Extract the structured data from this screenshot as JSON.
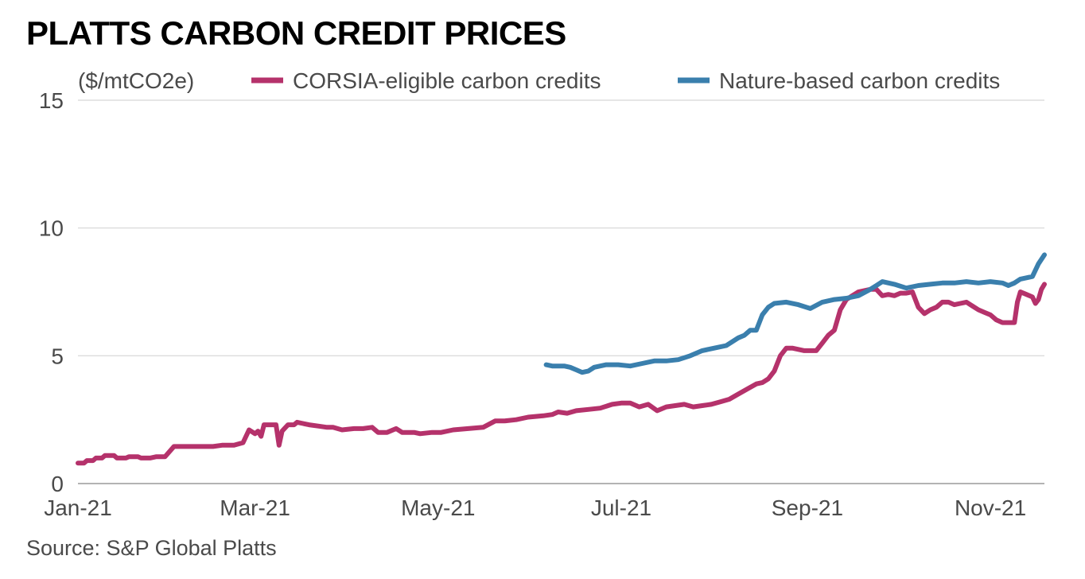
{
  "chart_data": {
    "type": "line",
    "title": "PLATTS CARBON CREDIT PRICES",
    "unit_label": "($/mtCO2e)",
    "source": "Source: S&P Global Platts",
    "ylim": [
      0,
      15
    ],
    "yticks": [
      0,
      5,
      10,
      15
    ],
    "xlim": [
      0,
      322
    ],
    "xticks": [
      {
        "label": "Jan-21",
        "day": 0
      },
      {
        "label": "Mar-21",
        "day": 59
      },
      {
        "label": "May-21",
        "day": 120
      },
      {
        "label": "Jul-21",
        "day": 181
      },
      {
        "label": "Sep-21",
        "day": 243
      },
      {
        "label": "Nov-21",
        "day": 304
      }
    ],
    "grid": true,
    "legend_position": "top",
    "series": [
      {
        "name": "CORSIA-eligible carbon credits",
        "color": "#b5326b",
        "points": [
          [
            0,
            0.8
          ],
          [
            2,
            0.8
          ],
          [
            3,
            0.9
          ],
          [
            5,
            0.9
          ],
          [
            6,
            1.0
          ],
          [
            8,
            1.0
          ],
          [
            9,
            1.1
          ],
          [
            12,
            1.1
          ],
          [
            13,
            1.0
          ],
          [
            16,
            1.0
          ],
          [
            17,
            1.05
          ],
          [
            20,
            1.05
          ],
          [
            21,
            1.0
          ],
          [
            24,
            1.0
          ],
          [
            26,
            1.05
          ],
          [
            29,
            1.05
          ],
          [
            32,
            1.45
          ],
          [
            35,
            1.45
          ],
          [
            40,
            1.45
          ],
          [
            45,
            1.45
          ],
          [
            48,
            1.5
          ],
          [
            52,
            1.5
          ],
          [
            55,
            1.6
          ],
          [
            57,
            2.1
          ],
          [
            59,
            1.95
          ],
          [
            60,
            2.05
          ],
          [
            61,
            1.85
          ],
          [
            62,
            2.3
          ],
          [
            66,
            2.3
          ],
          [
            67,
            1.5
          ],
          [
            68,
            2.05
          ],
          [
            70,
            2.3
          ],
          [
            72,
            2.3
          ],
          [
            73,
            2.4
          ],
          [
            75,
            2.35
          ],
          [
            77,
            2.3
          ],
          [
            80,
            2.25
          ],
          [
            83,
            2.2
          ],
          [
            85,
            2.2
          ],
          [
            88,
            2.1
          ],
          [
            92,
            2.15
          ],
          [
            95,
            2.15
          ],
          [
            98,
            2.2
          ],
          [
            100,
            2.0
          ],
          [
            103,
            2.0
          ],
          [
            106,
            2.15
          ],
          [
            108,
            2.0
          ],
          [
            112,
            2.0
          ],
          [
            114,
            1.95
          ],
          [
            118,
            2.0
          ],
          [
            121,
            2.0
          ],
          [
            125,
            2.1
          ],
          [
            130,
            2.15
          ],
          [
            135,
            2.2
          ],
          [
            139,
            2.45
          ],
          [
            142,
            2.45
          ],
          [
            146,
            2.5
          ],
          [
            150,
            2.6
          ],
          [
            155,
            2.65
          ],
          [
            158,
            2.7
          ],
          [
            160,
            2.8
          ],
          [
            163,
            2.75
          ],
          [
            166,
            2.85
          ],
          [
            170,
            2.9
          ],
          [
            174,
            2.95
          ],
          [
            178,
            3.1
          ],
          [
            181,
            3.15
          ],
          [
            184,
            3.15
          ],
          [
            187,
            3.0
          ],
          [
            190,
            3.1
          ],
          [
            193,
            2.85
          ],
          [
            196,
            3.0
          ],
          [
            199,
            3.05
          ],
          [
            202,
            3.1
          ],
          [
            205,
            3.0
          ],
          [
            208,
            3.05
          ],
          [
            211,
            3.1
          ],
          [
            214,
            3.2
          ],
          [
            217,
            3.3
          ],
          [
            220,
            3.5
          ],
          [
            223,
            3.7
          ],
          [
            226,
            3.9
          ],
          [
            228,
            3.95
          ],
          [
            230,
            4.1
          ],
          [
            232,
            4.4
          ],
          [
            234,
            5.0
          ],
          [
            236,
            5.3
          ],
          [
            238,
            5.3
          ],
          [
            240,
            5.25
          ],
          [
            242,
            5.2
          ],
          [
            244,
            5.2
          ],
          [
            246,
            5.2
          ],
          [
            248,
            5.5
          ],
          [
            250,
            5.8
          ],
          [
            252,
            6.0
          ],
          [
            254,
            6.8
          ],
          [
            256,
            7.2
          ],
          [
            258,
            7.35
          ],
          [
            260,
            7.5
          ],
          [
            262,
            7.55
          ],
          [
            264,
            7.6
          ],
          [
            266,
            7.6
          ],
          [
            268,
            7.35
          ],
          [
            270,
            7.4
          ],
          [
            272,
            7.35
          ],
          [
            274,
            7.45
          ],
          [
            276,
            7.45
          ],
          [
            278,
            7.5
          ],
          [
            280,
            6.9
          ],
          [
            282,
            6.65
          ],
          [
            284,
            6.8
          ],
          [
            286,
            6.9
          ],
          [
            288,
            7.1
          ],
          [
            290,
            7.1
          ],
          [
            292,
            7.0
          ],
          [
            294,
            7.05
          ],
          [
            296,
            7.1
          ],
          [
            298,
            6.95
          ],
          [
            300,
            6.8
          ],
          [
            302,
            6.7
          ],
          [
            304,
            6.6
          ],
          [
            306,
            6.4
          ],
          [
            308,
            6.3
          ],
          [
            310,
            6.3
          ],
          [
            312,
            6.3
          ],
          [
            313,
            7.1
          ],
          [
            314,
            7.5
          ],
          [
            316,
            7.4
          ],
          [
            318,
            7.3
          ],
          [
            319,
            7.05
          ],
          [
            320,
            7.2
          ],
          [
            321,
            7.6
          ],
          [
            322,
            7.8
          ]
        ]
      },
      {
        "name": "Nature-based carbon credits",
        "color": "#3a7fad",
        "points": [
          [
            156,
            4.65
          ],
          [
            158,
            4.6
          ],
          [
            160,
            4.6
          ],
          [
            162,
            4.6
          ],
          [
            164,
            4.55
          ],
          [
            166,
            4.45
          ],
          [
            168,
            4.35
          ],
          [
            170,
            4.4
          ],
          [
            172,
            4.55
          ],
          [
            174,
            4.6
          ],
          [
            176,
            4.65
          ],
          [
            180,
            4.65
          ],
          [
            184,
            4.6
          ],
          [
            188,
            4.7
          ],
          [
            192,
            4.8
          ],
          [
            196,
            4.8
          ],
          [
            200,
            4.85
          ],
          [
            204,
            5.0
          ],
          [
            208,
            5.2
          ],
          [
            212,
            5.3
          ],
          [
            216,
            5.4
          ],
          [
            220,
            5.7
          ],
          [
            222,
            5.8
          ],
          [
            224,
            6.0
          ],
          [
            226,
            6.0
          ],
          [
            228,
            6.6
          ],
          [
            230,
            6.9
          ],
          [
            232,
            7.05
          ],
          [
            236,
            7.1
          ],
          [
            240,
            7.0
          ],
          [
            244,
            6.85
          ],
          [
            248,
            7.1
          ],
          [
            252,
            7.2
          ],
          [
            256,
            7.25
          ],
          [
            260,
            7.35
          ],
          [
            264,
            7.6
          ],
          [
            266,
            7.75
          ],
          [
            268,
            7.9
          ],
          [
            272,
            7.8
          ],
          [
            276,
            7.65
          ],
          [
            280,
            7.75
          ],
          [
            284,
            7.8
          ],
          [
            288,
            7.85
          ],
          [
            292,
            7.85
          ],
          [
            296,
            7.9
          ],
          [
            300,
            7.85
          ],
          [
            304,
            7.9
          ],
          [
            308,
            7.85
          ],
          [
            310,
            7.75
          ],
          [
            312,
            7.85
          ],
          [
            314,
            8.0
          ],
          [
            316,
            8.05
          ],
          [
            318,
            8.1
          ],
          [
            320,
            8.6
          ],
          [
            322,
            8.95
          ]
        ]
      }
    ]
  }
}
